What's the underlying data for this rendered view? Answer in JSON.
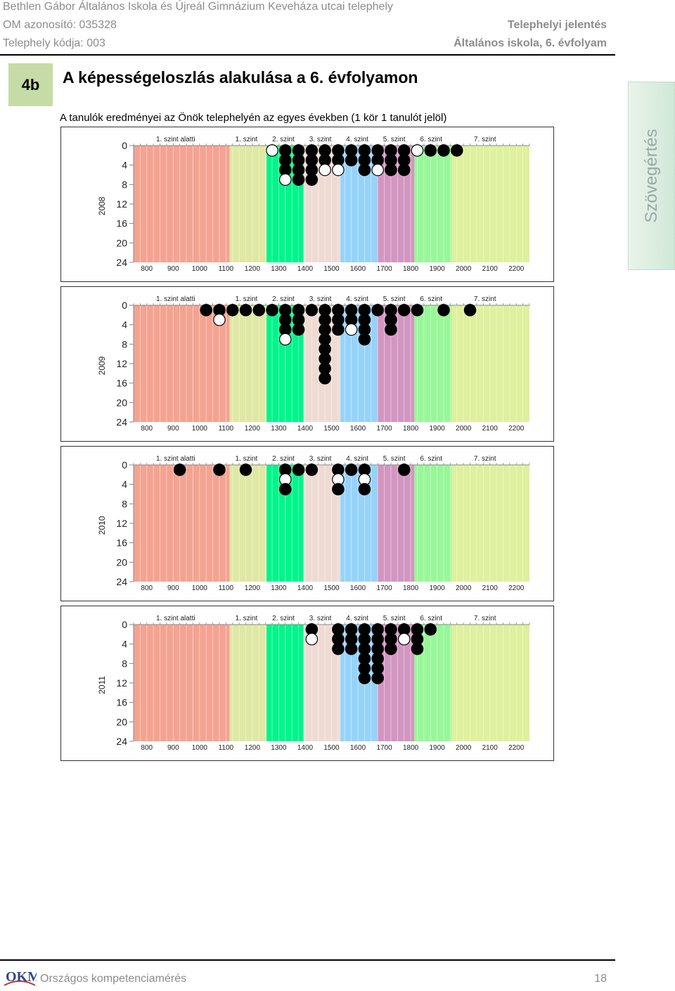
{
  "header": {
    "school": "Bethlen Gábor Általános Iskola és Újreál Gimnázium Keveháza utcai telephely",
    "om_id": "OM azonosító: 035328",
    "site_code": "Telephely kódja: 003",
    "report_type": "Telephelyi jelentés",
    "grade": "Általános iskola, 6. évfolyam"
  },
  "section": {
    "badge": "4b",
    "title": "A képességeloszlás alakulása a 6. évfolyamon",
    "subtitle": "A tanulók eredményei az Önök telephelyén az egyes években (1 kör 1 tanulót jelöl)"
  },
  "side_tab": "Szövegértés",
  "footer": {
    "logo_text": "OKM",
    "text": "Országos kompetenciamérés",
    "page": "18"
  },
  "colors": {
    "band_below1": "#f4a391",
    "band1": "#dfe8a4",
    "band2": "#00f58a",
    "band3": "#eedbd4",
    "band4": "#96d3fa",
    "band5": "#d296c0",
    "band6": "#98f798",
    "band7": "#dff09e"
  },
  "chart_data": [
    {
      "type": "dot-histogram",
      "year": "2008",
      "x_ticks": [
        "800",
        "900",
        "1000",
        "1100",
        "1200",
        "1300",
        "1400",
        "1500",
        "1600",
        "1700",
        "1800",
        "1900",
        "2000",
        "2100",
        "2200"
      ],
      "y_ticks": [
        "0",
        "4",
        "8",
        "12",
        "16",
        "20",
        "24"
      ],
      "level_labels": [
        "1. szint alatti",
        "1. szint",
        "2. szint",
        "3. szint",
        "4. szint",
        "5. szint",
        "6. szint",
        "7. szint"
      ],
      "level_boundaries": [
        1114,
        1254,
        1394,
        1534,
        1674,
        1814,
        1954
      ],
      "xlim": [
        750,
        2250
      ],
      "ylim": [
        0,
        24
      ],
      "columns": [
        {
          "x": 1275,
          "dots": [
            "white"
          ]
        },
        {
          "x": 1325,
          "dots": [
            "black",
            "black",
            "black",
            "white"
          ]
        },
        {
          "x": 1375,
          "dots": [
            "black",
            "black",
            "black",
            "black"
          ]
        },
        {
          "x": 1425,
          "dots": [
            "black",
            "black",
            "black",
            "black"
          ]
        },
        {
          "x": 1475,
          "dots": [
            "black",
            "black",
            "white"
          ]
        },
        {
          "x": 1525,
          "dots": [
            "black",
            "black",
            "white"
          ]
        },
        {
          "x": 1575,
          "dots": [
            "black",
            "black"
          ]
        },
        {
          "x": 1625,
          "dots": [
            "black",
            "black",
            "black"
          ]
        },
        {
          "x": 1675,
          "dots": [
            "black",
            "black",
            "white"
          ]
        },
        {
          "x": 1725,
          "dots": [
            "black",
            "black",
            "black"
          ]
        },
        {
          "x": 1775,
          "dots": [
            "black",
            "black",
            "black"
          ]
        },
        {
          "x": 1825,
          "dots": [
            "white"
          ]
        },
        {
          "x": 1875,
          "dots": [
            "black"
          ]
        },
        {
          "x": 1925,
          "dots": [
            "black"
          ]
        },
        {
          "x": 1975,
          "dots": [
            "black"
          ]
        }
      ]
    },
    {
      "type": "dot-histogram",
      "year": "2009",
      "x_ticks": [
        "800",
        "900",
        "1000",
        "1100",
        "1200",
        "1300",
        "1400",
        "1500",
        "1600",
        "1700",
        "1800",
        "1900",
        "2000",
        "2100",
        "2200"
      ],
      "y_ticks": [
        "0",
        "4",
        "8",
        "12",
        "16",
        "20",
        "24"
      ],
      "level_labels": [
        "1. szint alatti",
        "1. szint",
        "2. szint",
        "3. szint",
        "4. szint",
        "5. szint",
        "6. szint",
        "7. szint"
      ],
      "level_boundaries": [
        1114,
        1254,
        1394,
        1534,
        1674,
        1814,
        1954
      ],
      "xlim": [
        750,
        2250
      ],
      "ylim": [
        0,
        24
      ],
      "columns": [
        {
          "x": 1025,
          "dots": [
            "black"
          ]
        },
        {
          "x": 1075,
          "dots": [
            "black",
            "white"
          ]
        },
        {
          "x": 1125,
          "dots": [
            "black"
          ]
        },
        {
          "x": 1175,
          "dots": [
            "black"
          ]
        },
        {
          "x": 1225,
          "dots": [
            "black"
          ]
        },
        {
          "x": 1275,
          "dots": [
            "black"
          ]
        },
        {
          "x": 1325,
          "dots": [
            "black",
            "black",
            "black",
            "white"
          ]
        },
        {
          "x": 1375,
          "dots": [
            "black",
            "black",
            "black"
          ]
        },
        {
          "x": 1425,
          "dots": [
            "black"
          ]
        },
        {
          "x": 1475,
          "dots": [
            "black",
            "black",
            "black",
            "black",
            "black",
            "black",
            "black",
            "black"
          ]
        },
        {
          "x": 1525,
          "dots": [
            "black",
            "black",
            "black"
          ]
        },
        {
          "x": 1575,
          "dots": [
            "black",
            "black",
            "white"
          ]
        },
        {
          "x": 1625,
          "dots": [
            "black",
            "black",
            "black",
            "black"
          ]
        },
        {
          "x": 1675,
          "dots": [
            "black"
          ]
        },
        {
          "x": 1725,
          "dots": [
            "black",
            "black",
            "black"
          ]
        },
        {
          "x": 1775,
          "dots": [
            "black"
          ]
        },
        {
          "x": 1825,
          "dots": [
            "black"
          ]
        },
        {
          "x": 1925,
          "dots": [
            "black"
          ]
        },
        {
          "x": 2025,
          "dots": [
            "black"
          ]
        }
      ]
    },
    {
      "type": "dot-histogram",
      "year": "2010",
      "x_ticks": [
        "800",
        "900",
        "1000",
        "1100",
        "1200",
        "1300",
        "1400",
        "1500",
        "1600",
        "1700",
        "1800",
        "1900",
        "2000",
        "2100",
        "2200"
      ],
      "y_ticks": [
        "0",
        "4",
        "8",
        "12",
        "16",
        "20",
        "24"
      ],
      "level_labels": [
        "1. szint alatti",
        "1. szint",
        "2. szint",
        "3. szint",
        "4. szint",
        "5. szint",
        "6. szint",
        "7. szint"
      ],
      "level_boundaries": [
        1114,
        1254,
        1394,
        1534,
        1674,
        1814,
        1954
      ],
      "xlim": [
        750,
        2250
      ],
      "ylim": [
        0,
        24
      ],
      "columns": [
        {
          "x": 925,
          "dots": [
            "black"
          ]
        },
        {
          "x": 1075,
          "dots": [
            "black"
          ]
        },
        {
          "x": 1175,
          "dots": [
            "black"
          ]
        },
        {
          "x": 1325,
          "dots": [
            "black",
            "white",
            "black"
          ]
        },
        {
          "x": 1375,
          "dots": [
            "black"
          ]
        },
        {
          "x": 1425,
          "dots": [
            "black"
          ]
        },
        {
          "x": 1525,
          "dots": [
            "black",
            "white",
            "black"
          ]
        },
        {
          "x": 1575,
          "dots": [
            "black"
          ]
        },
        {
          "x": 1625,
          "dots": [
            "black",
            "white",
            "black"
          ]
        },
        {
          "x": 1775,
          "dots": [
            "black"
          ]
        }
      ]
    },
    {
      "type": "dot-histogram",
      "year": "2011",
      "x_ticks": [
        "800",
        "900",
        "1000",
        "1100",
        "1200",
        "1300",
        "1400",
        "1500",
        "1600",
        "1700",
        "1800",
        "1900",
        "2000",
        "2100",
        "2200"
      ],
      "y_ticks": [
        "0",
        "4",
        "8",
        "12",
        "16",
        "20",
        "24"
      ],
      "level_labels": [
        "1. szint alatti",
        "1. szint",
        "2. szint",
        "3. szint",
        "4. szint",
        "5. szint",
        "6. szint",
        "7. szint"
      ],
      "level_boundaries": [
        1114,
        1254,
        1394,
        1534,
        1674,
        1814,
        1954
      ],
      "xlim": [
        750,
        2250
      ],
      "ylim": [
        0,
        24
      ],
      "columns": [
        {
          "x": 1425,
          "dots": [
            "black",
            "white"
          ]
        },
        {
          "x": 1525,
          "dots": [
            "black",
            "black",
            "black"
          ]
        },
        {
          "x": 1575,
          "dots": [
            "black",
            "black",
            "black"
          ]
        },
        {
          "x": 1625,
          "dots": [
            "black",
            "black",
            "black",
            "black",
            "black",
            "black"
          ]
        },
        {
          "x": 1675,
          "dots": [
            "black",
            "black",
            "black",
            "black",
            "black",
            "black"
          ]
        },
        {
          "x": 1725,
          "dots": [
            "black",
            "black",
            "black"
          ]
        },
        {
          "x": 1775,
          "dots": [
            "black",
            "white"
          ]
        },
        {
          "x": 1825,
          "dots": [
            "black",
            "black",
            "black"
          ]
        },
        {
          "x": 1875,
          "dots": [
            "black"
          ]
        }
      ]
    }
  ]
}
